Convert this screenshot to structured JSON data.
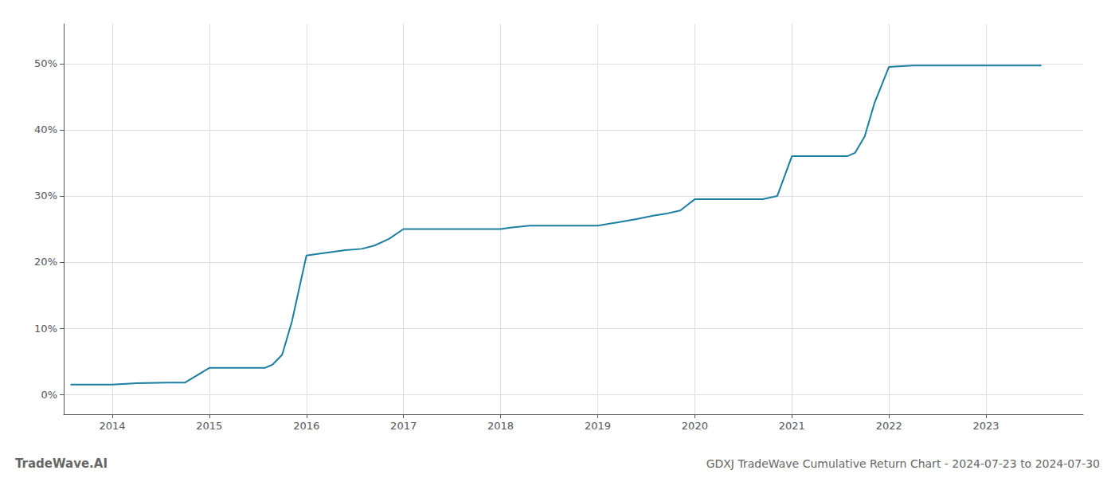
{
  "chart_data": {
    "type": "line",
    "title": "GDXJ TradeWave Cumulative Return Chart - 2024-07-23 to 2024-07-30",
    "annotations": [
      "TradeWave.AI"
    ],
    "x": [
      2013.57,
      2013.75,
      2014.0,
      2014.25,
      2014.57,
      2014.75,
      2015.0,
      2015.25,
      2015.57,
      2015.65,
      2015.75,
      2015.85,
      2016.0,
      2016.1,
      2016.25,
      2016.4,
      2016.57,
      2016.7,
      2016.85,
      2017.0,
      2017.15,
      2017.3,
      2017.57,
      2017.7,
      2018.0,
      2018.1,
      2018.3,
      2018.57,
      2018.7,
      2019.0,
      2019.2,
      2019.4,
      2019.57,
      2019.7,
      2019.85,
      2020.0,
      2020.15,
      2020.3,
      2020.57,
      2020.7,
      2020.85,
      2021.0,
      2021.2,
      2021.4,
      2021.57,
      2021.65,
      2021.75,
      2021.85,
      2022.0,
      2022.1,
      2022.25,
      2022.57,
      2022.7,
      2023.0,
      2023.57
    ],
    "values": [
      1.5,
      1.5,
      1.5,
      1.7,
      1.8,
      1.8,
      4.0,
      4.0,
      4.0,
      4.5,
      6.0,
      11.0,
      21.0,
      21.2,
      21.5,
      21.8,
      22.0,
      22.5,
      23.5,
      25.0,
      25.0,
      25.0,
      25.0,
      25.0,
      25.0,
      25.2,
      25.5,
      25.5,
      25.5,
      25.5,
      26.0,
      26.5,
      27.0,
      27.3,
      27.8,
      29.5,
      29.5,
      29.5,
      29.5,
      29.5,
      30.0,
      36.0,
      36.0,
      36.0,
      36.0,
      36.5,
      39.0,
      44.0,
      49.5,
      49.6,
      49.7,
      49.7,
      49.7,
      49.7,
      49.7
    ],
    "color": "#1a7fa0",
    "xlim": [
      2013.5,
      2024.0
    ],
    "ylim": [
      -3,
      56
    ],
    "xticks": [
      2014,
      2015,
      2016,
      2017,
      2018,
      2019,
      2020,
      2021,
      2022,
      2023
    ],
    "yticks": [
      {
        "value": 0,
        "label": "0%"
      },
      {
        "value": 10,
        "label": "10%"
      },
      {
        "value": 20,
        "label": "20%"
      },
      {
        "value": 30,
        "label": "30%"
      },
      {
        "value": 40,
        "label": "40%"
      },
      {
        "value": 50,
        "label": "50%"
      }
    ],
    "grid": true
  }
}
